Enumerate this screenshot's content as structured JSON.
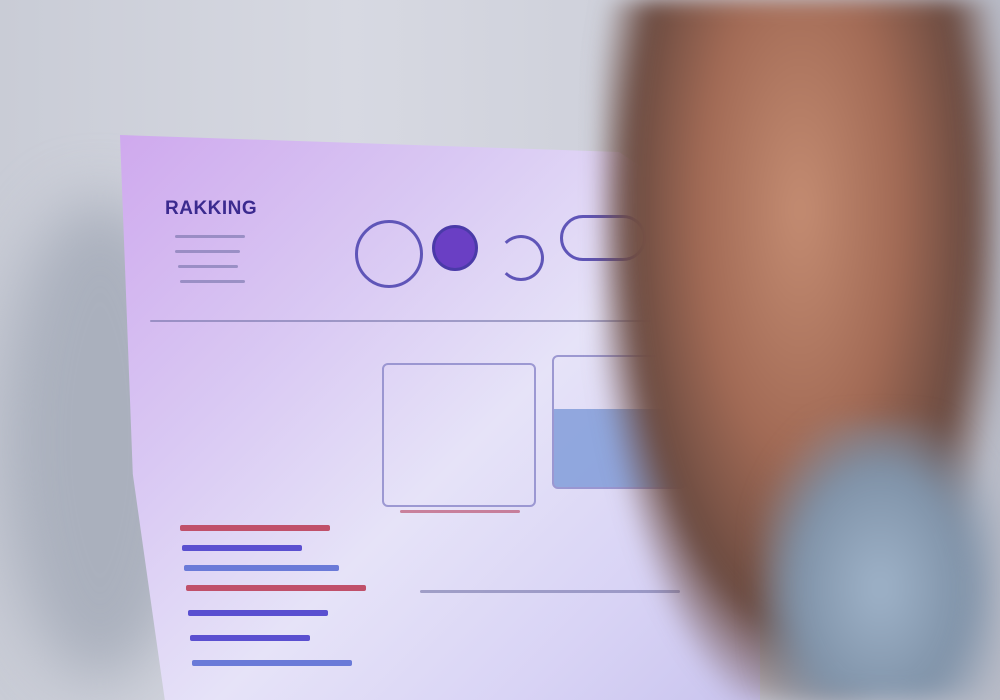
{
  "document": {
    "title": "RAKKING"
  },
  "colors": {
    "accent": "#3b2a8f",
    "sheet": "#d9c8f3",
    "bar_red": "#c0506a",
    "bar_blue": "#5a4fd0"
  }
}
